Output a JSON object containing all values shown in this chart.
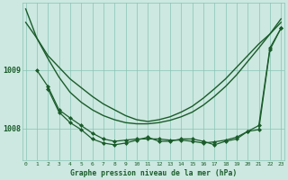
{
  "background_color": "#cce8e0",
  "plot_bg_color": "#cce8e0",
  "grid_color": "#88c4b4",
  "line_color": "#1a5c2a",
  "title": "Graphe pression niveau de la mer (hPa)",
  "xlabel_ticks": [
    "0",
    "1",
    "2",
    "3",
    "4",
    "5",
    "6",
    "7",
    "8",
    "9",
    "10",
    "11",
    "12",
    "13",
    "14",
    "15",
    "16",
    "17",
    "18",
    "19",
    "20",
    "21",
    "22",
    "23"
  ],
  "yticks": [
    1008,
    1009
  ],
  "ylim": [
    1007.45,
    1010.15
  ],
  "xlim": [
    -0.3,
    23.3
  ],
  "series": [
    {
      "x": [
        0,
        1,
        2,
        3,
        4,
        5,
        6,
        7,
        8,
        9,
        10,
        11,
        12,
        13,
        14,
        15,
        16,
        17,
        18,
        19,
        20,
        21,
        22,
        23
      ],
      "y": [
        1010.05,
        1009.55,
        1009.25,
        1009.05,
        1008.85,
        1008.7,
        1008.55,
        1008.42,
        1008.32,
        1008.22,
        1008.15,
        1008.12,
        1008.15,
        1008.2,
        1008.28,
        1008.38,
        1008.52,
        1008.68,
        1008.85,
        1009.05,
        1009.25,
        1009.45,
        1009.62,
        1009.82
      ],
      "marker": null,
      "linewidth": 1.0
    },
    {
      "x": [
        0,
        1,
        2,
        3,
        4,
        5,
        6,
        7,
        8,
        9,
        10,
        11,
        12,
        13,
        14,
        15,
        16,
        17,
        18,
        19,
        20,
        21,
        22,
        23
      ],
      "y": [
        1009.82,
        1009.55,
        1009.2,
        1008.88,
        1008.62,
        1008.45,
        1008.32,
        1008.22,
        1008.15,
        1008.1,
        1008.08,
        1008.08,
        1008.1,
        1008.14,
        1008.2,
        1008.28,
        1008.4,
        1008.55,
        1008.72,
        1008.92,
        1009.15,
        1009.38,
        1009.62,
        1009.88
      ],
      "marker": null,
      "linewidth": 1.0
    },
    {
      "x": [
        1,
        2,
        3,
        4,
        5,
        6,
        7,
        8,
        9,
        10,
        11,
        12,
        13,
        14,
        15,
        16,
        17,
        18,
        19,
        20,
        21,
        22,
        23
      ],
      "y": [
        1009.0,
        1008.72,
        1008.32,
        1008.18,
        1008.05,
        1007.92,
        1007.82,
        1007.78,
        1007.8,
        1007.82,
        1007.82,
        1007.82,
        1007.8,
        1007.8,
        1007.78,
        1007.75,
        1007.77,
        1007.8,
        1007.85,
        1007.95,
        1008.05,
        1009.38,
        1009.72
      ],
      "marker": "D",
      "markersize": 2.0,
      "linewidth": 0.9
    },
    {
      "x": [
        2,
        3,
        4,
        5,
        6,
        7,
        8,
        9,
        10,
        11,
        12,
        13,
        14,
        15,
        16,
        17,
        18,
        19,
        20,
        21,
        22,
        23
      ],
      "y": [
        1008.68,
        1008.28,
        1008.1,
        1007.98,
        1007.82,
        1007.75,
        1007.72,
        1007.75,
        1007.8,
        1007.85,
        1007.78,
        1007.78,
        1007.82,
        1007.82,
        1007.78,
        1007.72,
        1007.78,
        1007.82,
        1007.95,
        1007.98,
        1009.35,
        1009.72
      ],
      "marker": "D",
      "markersize": 2.0,
      "linewidth": 0.9
    }
  ]
}
